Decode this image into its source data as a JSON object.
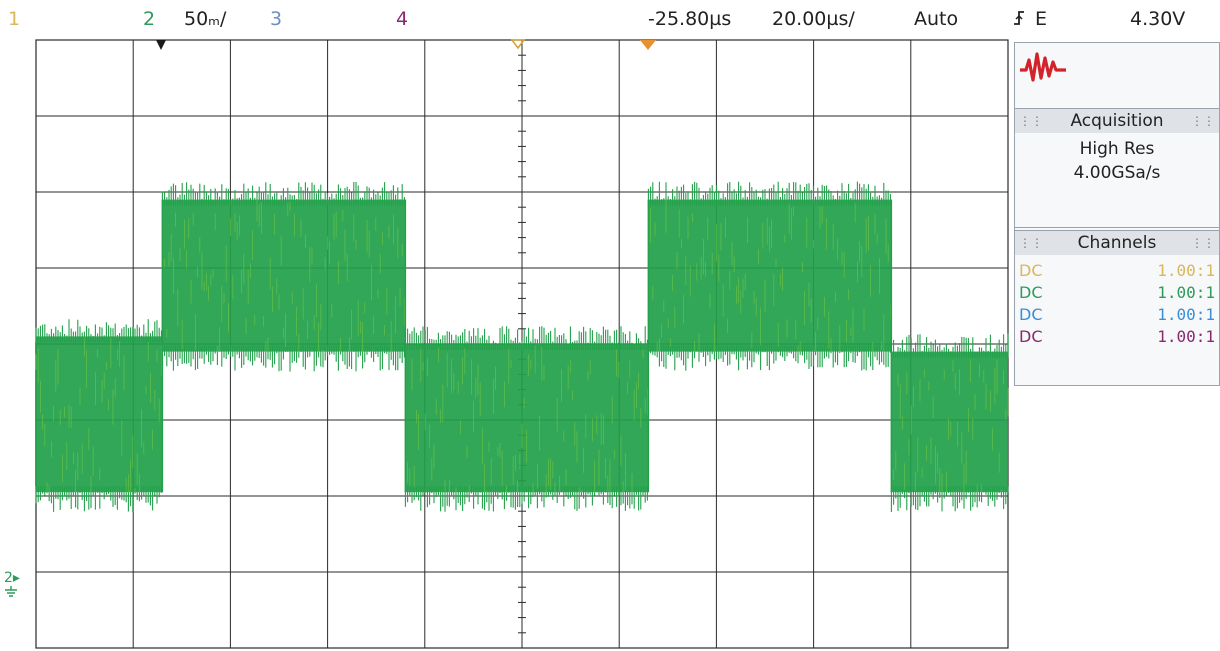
{
  "topbar": {
    "ch1_label": "1",
    "ch2_label": "2",
    "ch2_scale": "50ₘ/",
    "ch3_label": "3",
    "ch4_label": "4",
    "delay": "-25.80µs",
    "timebase": "20.00µs/",
    "trigger_mode": "Auto",
    "trigger_source": "E",
    "trigger_level": "4.30V"
  },
  "ground_marker": "2",
  "panel": {
    "acquisition_title": "Acquisition",
    "acquisition_mode": "High Res",
    "sample_rate": "4.00GSa/s",
    "channels_title": "Channels",
    "channels": [
      {
        "coupling": "DC",
        "ratio": "1.00:1",
        "color": "#d8b85a"
      },
      {
        "coupling": "DC",
        "ratio": "1.00:1",
        "color": "#2e9a5c"
      },
      {
        "coupling": "DC",
        "ratio": "1.00:1",
        "color": "#3a8fd6"
      },
      {
        "coupling": "DC",
        "ratio": "1.00:1",
        "color": "#8a2a6e"
      }
    ]
  },
  "colors": {
    "trace": "#22a04a",
    "trace_highlight": "#7fcf3a",
    "grid": "#2a2a2a"
  },
  "chart_data": {
    "type": "line",
    "title": "",
    "xlabel": "",
    "ylabel": "",
    "x_divisions": 10,
    "y_divisions": 8,
    "series": [
      {
        "segments": [
          {
            "start_div": 0.0,
            "end_div": 1.3,
            "low_div": -1.95,
            "high_div": 0.1
          },
          {
            "start_div": 1.3,
            "end_div": 3.8,
            "low_div": -0.1,
            "high_div": 1.9
          },
          {
            "start_div": 3.8,
            "end_div": 6.3,
            "low_div": -1.95,
            "high_div": 0.0
          },
          {
            "start_div": 6.3,
            "end_div": 8.8,
            "low_div": -0.1,
            "high_div": 1.9
          },
          {
            "start_div": 8.8,
            "end_div": 10.0,
            "low_div": -1.95,
            "high_div": -0.1
          }
        ]
      }
    ]
  }
}
